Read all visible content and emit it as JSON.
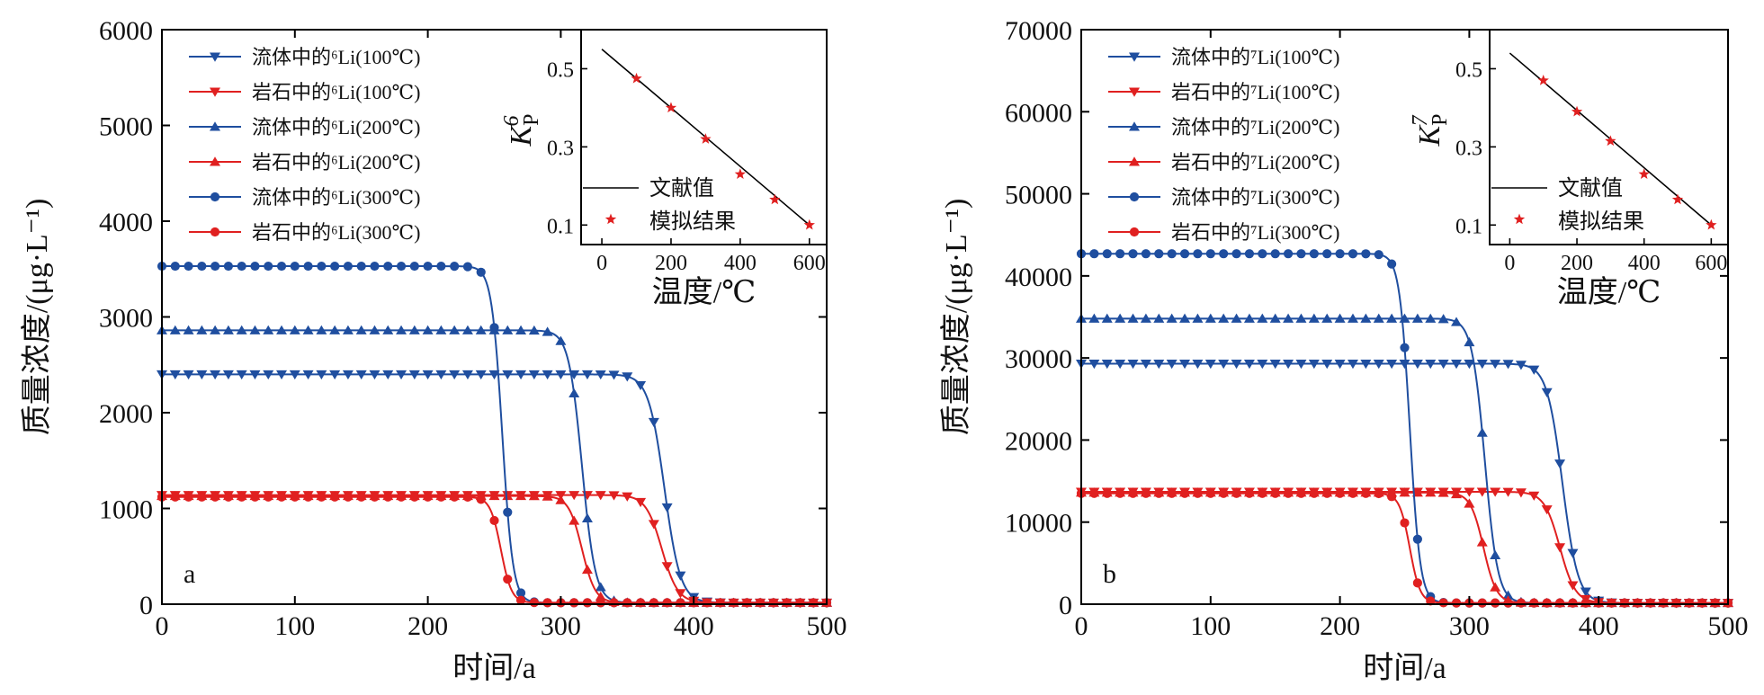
{
  "chart_data": [
    {
      "type": "line",
      "panel_label": "a",
      "xlabel": "时间/a",
      "ylabel": "质量浓度/(μg·L⁻¹)",
      "xlim": [
        0,
        500
      ],
      "ylim": [
        0,
        6000
      ],
      "xticks": [
        0,
        100,
        200,
        300,
        400,
        500
      ],
      "yticks": [
        0,
        1000,
        2000,
        3000,
        4000,
        5000,
        6000
      ],
      "grid": false,
      "legend_placement": "top-left",
      "series": [
        {
          "name": "流体中的⁶Li(100℃)",
          "color": "#1f4e9f",
          "marker": "triangle-down",
          "plateau": 2400,
          "x_mid": 378,
          "width": 6,
          "end": 15
        },
        {
          "name": "岩石中的⁶Li(100℃)",
          "color": "#e02020",
          "marker": "triangle-down",
          "plateau": 1140,
          "x_mid": 376,
          "width": 6,
          "end": 15
        },
        {
          "name": "流体中的⁶Li(200℃)",
          "color": "#1f4e9f",
          "marker": "triangle-up",
          "plateau": 2860,
          "x_mid": 316,
          "width": 5,
          "end": 15
        },
        {
          "name": "岩石中的⁶Li(200℃)",
          "color": "#e02020",
          "marker": "triangle-up",
          "plateau": 1130,
          "x_mid": 316,
          "width": 5,
          "end": 15
        },
        {
          "name": "流体中的⁶Li(300℃)",
          "color": "#1f4e9f",
          "marker": "circle",
          "plateau": 3530,
          "x_mid": 256,
          "width": 4,
          "end": 15
        },
        {
          "name": "岩石中的⁶Li(300℃)",
          "color": "#e02020",
          "marker": "circle",
          "plateau": 1120,
          "x_mid": 255,
          "width": 4,
          "end": 15
        }
      ],
      "inset": {
        "xlabel": "温度/℃",
        "ylabel": "K_P^6",
        "xlim": [
          -60,
          650
        ],
        "ylim": [
          0.05,
          0.6
        ],
        "xticks": [
          0,
          200,
          400,
          600
        ],
        "yticks": [
          0.1,
          0.3,
          0.5
        ],
        "legend": [
          {
            "name": "文献值",
            "style": "line",
            "color": "#000000"
          },
          {
            "name": "模拟结果",
            "style": "star",
            "color": "#e02020"
          }
        ],
        "line": {
          "x": [
            0,
            600
          ],
          "y": [
            0.55,
            0.1
          ]
        },
        "points": {
          "x": [
            100,
            200,
            300,
            400,
            500,
            600
          ],
          "y": [
            0.475,
            0.4,
            0.32,
            0.23,
            0.165,
            0.1
          ]
        }
      }
    },
    {
      "type": "line",
      "panel_label": "b",
      "xlabel": "时间/a",
      "ylabel": "质量浓度/(μg·L⁻¹)",
      "xlim": [
        0,
        500
      ],
      "ylim": [
        0,
        70000
      ],
      "xticks": [
        0,
        100,
        200,
        300,
        400,
        500
      ],
      "yticks": [
        0,
        10000,
        20000,
        30000,
        40000,
        50000,
        60000,
        70000
      ],
      "grid": false,
      "legend_placement": "top-left",
      "series": [
        {
          "name": "流体中的⁷Li(100℃)",
          "color": "#1f4e9f",
          "marker": "triangle-down",
          "plateau": 29300,
          "x_mid": 372,
          "width": 6,
          "end": 150
        },
        {
          "name": "岩石中的⁷Li(100℃)",
          "color": "#e02020",
          "marker": "triangle-down",
          "plateau": 13700,
          "x_mid": 370,
          "width": 6,
          "end": 150
        },
        {
          "name": "流体中的⁷Li(200℃)",
          "color": "#1f4e9f",
          "marker": "triangle-up",
          "plateau": 34800,
          "x_mid": 312,
          "width": 5,
          "end": 150
        },
        {
          "name": "岩石中的⁷Li(200℃)",
          "color": "#e02020",
          "marker": "triangle-up",
          "plateau": 13600,
          "x_mid": 311,
          "width": 5,
          "end": 150
        },
        {
          "name": "流体中的⁷Li(300℃)",
          "color": "#1f4e9f",
          "marker": "circle",
          "plateau": 42700,
          "x_mid": 254,
          "width": 4,
          "end": 150
        },
        {
          "name": "岩石中的⁷Li(300℃)",
          "color": "#e02020",
          "marker": "circle",
          "plateau": 13500,
          "x_mid": 254,
          "width": 4,
          "end": 150
        }
      ],
      "inset": {
        "xlabel": "温度/℃",
        "ylabel": "K_P^7",
        "xlim": [
          -60,
          650
        ],
        "ylim": [
          0.05,
          0.6
        ],
        "xticks": [
          0,
          200,
          400,
          600
        ],
        "yticks": [
          0.1,
          0.3,
          0.5
        ],
        "legend": [
          {
            "name": "文献值",
            "style": "line",
            "color": "#000000"
          },
          {
            "name": "模拟结果",
            "style": "star",
            "color": "#e02020"
          }
        ],
        "line": {
          "x": [
            0,
            600
          ],
          "y": [
            0.54,
            0.1
          ]
        },
        "points": {
          "x": [
            100,
            200,
            300,
            400,
            500,
            600
          ],
          "y": [
            0.47,
            0.39,
            0.315,
            0.23,
            0.165,
            0.1
          ]
        }
      }
    }
  ]
}
